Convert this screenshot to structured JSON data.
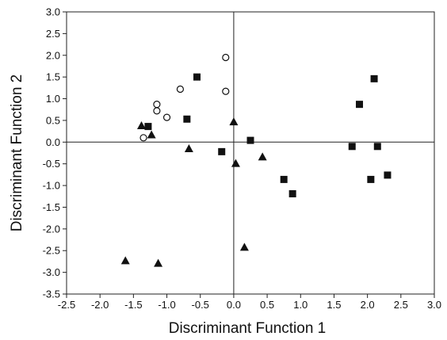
{
  "chart_data": {
    "type": "scatter",
    "title": "",
    "xlabel": "Discriminant Function 1",
    "ylabel": "Discriminant Function 2",
    "xlim": [
      -2.5,
      3.0
    ],
    "ylim": [
      -3.5,
      3.0
    ],
    "x_ticks": [
      "-2.5",
      "-2.0",
      "-1.5",
      "-1.0",
      "-0.5",
      "0.0",
      "0.5",
      "1.0",
      "1.5",
      "2.0",
      "2.5",
      "3.0"
    ],
    "y_ticks": [
      "3.0",
      "2.5",
      "2.0",
      "1.5",
      "1.0",
      "0.5",
      "0.0",
      "-0.5",
      "-1.0",
      "-1.5",
      "-2.0",
      "-2.5",
      "-3.0",
      "-3.5"
    ],
    "grid": false,
    "reference_lines": {
      "x": 0,
      "y": 0
    },
    "series": [
      {
        "marker": "square-filled",
        "color": "#111111",
        "points": [
          {
            "x": -1.28,
            "y": 0.36
          },
          {
            "x": -0.55,
            "y": 1.5
          },
          {
            "x": -0.7,
            "y": 0.53
          },
          {
            "x": -0.18,
            "y": -0.22
          },
          {
            "x": 0.25,
            "y": 0.04
          },
          {
            "x": 0.75,
            "y": -0.86
          },
          {
            "x": 0.88,
            "y": -1.19
          },
          {
            "x": 1.77,
            "y": -0.1
          },
          {
            "x": 1.88,
            "y": 0.87
          },
          {
            "x": 2.1,
            "y": 1.46
          },
          {
            "x": 2.15,
            "y": -0.1
          },
          {
            "x": 2.05,
            "y": -0.86
          },
          {
            "x": 2.3,
            "y": -0.76
          }
        ]
      },
      {
        "marker": "triangle-filled",
        "color": "#111111",
        "points": [
          {
            "x": -1.38,
            "y": 0.38
          },
          {
            "x": -1.23,
            "y": 0.17
          },
          {
            "x": -0.67,
            "y": -0.15
          },
          {
            "x": 0.0,
            "y": 0.47
          },
          {
            "x": 0.03,
            "y": -0.49
          },
          {
            "x": 0.43,
            "y": -0.34
          },
          {
            "x": 0.16,
            "y": -2.42
          },
          {
            "x": -1.62,
            "y": -2.73
          },
          {
            "x": -1.13,
            "y": -2.79
          }
        ]
      },
      {
        "marker": "circle-open",
        "color": "#111111",
        "points": [
          {
            "x": -1.35,
            "y": 0.1
          },
          {
            "x": -1.15,
            "y": 0.87
          },
          {
            "x": -1.15,
            "y": 0.72
          },
          {
            "x": -1.0,
            "y": 0.57
          },
          {
            "x": -0.8,
            "y": 1.22
          },
          {
            "x": -0.12,
            "y": 1.95
          },
          {
            "x": -0.12,
            "y": 1.17
          }
        ]
      }
    ]
  }
}
